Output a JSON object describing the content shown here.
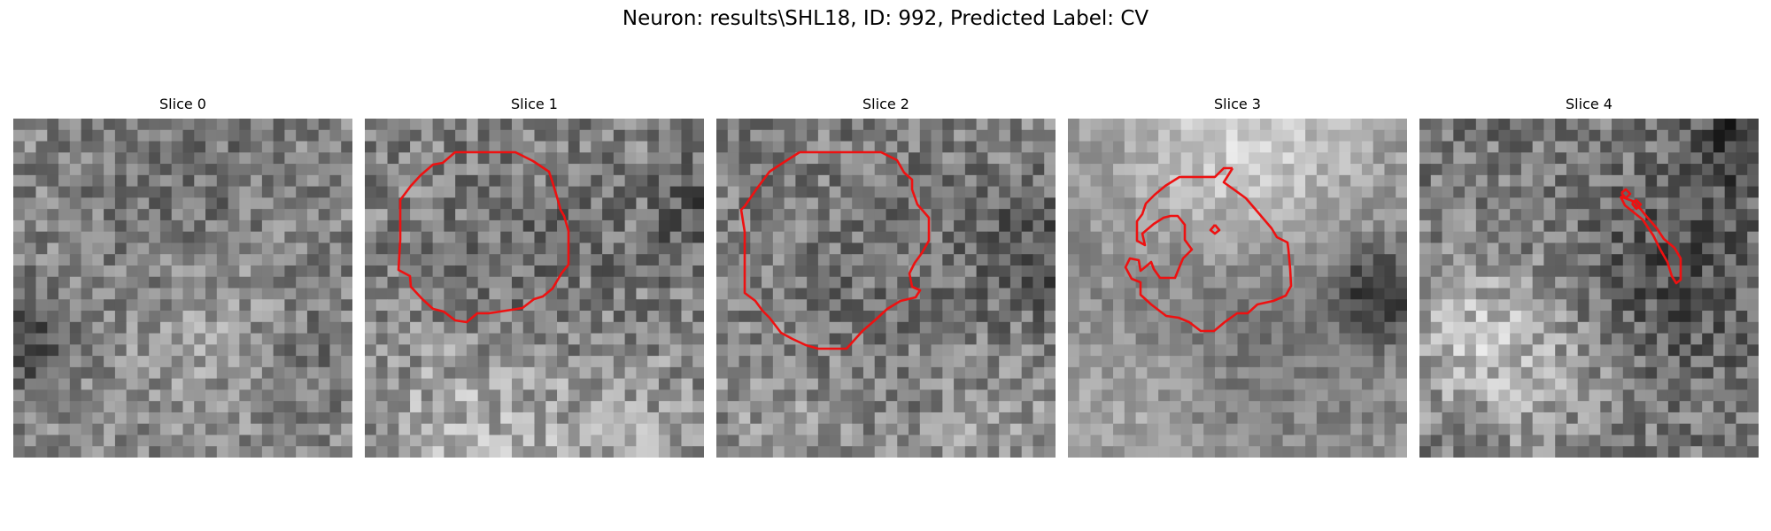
{
  "figure": {
    "title": "Neuron: results\\SHL18, ID: 992, Predicted Label: CV"
  },
  "panels": [
    {
      "title": "Slice 0"
    },
    {
      "title": "Slice 1"
    },
    {
      "title": "Slice 2"
    },
    {
      "title": "Slice 3"
    },
    {
      "title": "Slice 4"
    }
  ],
  "colors": {
    "contour": "#ee1111",
    "background": "#ffffff"
  }
}
